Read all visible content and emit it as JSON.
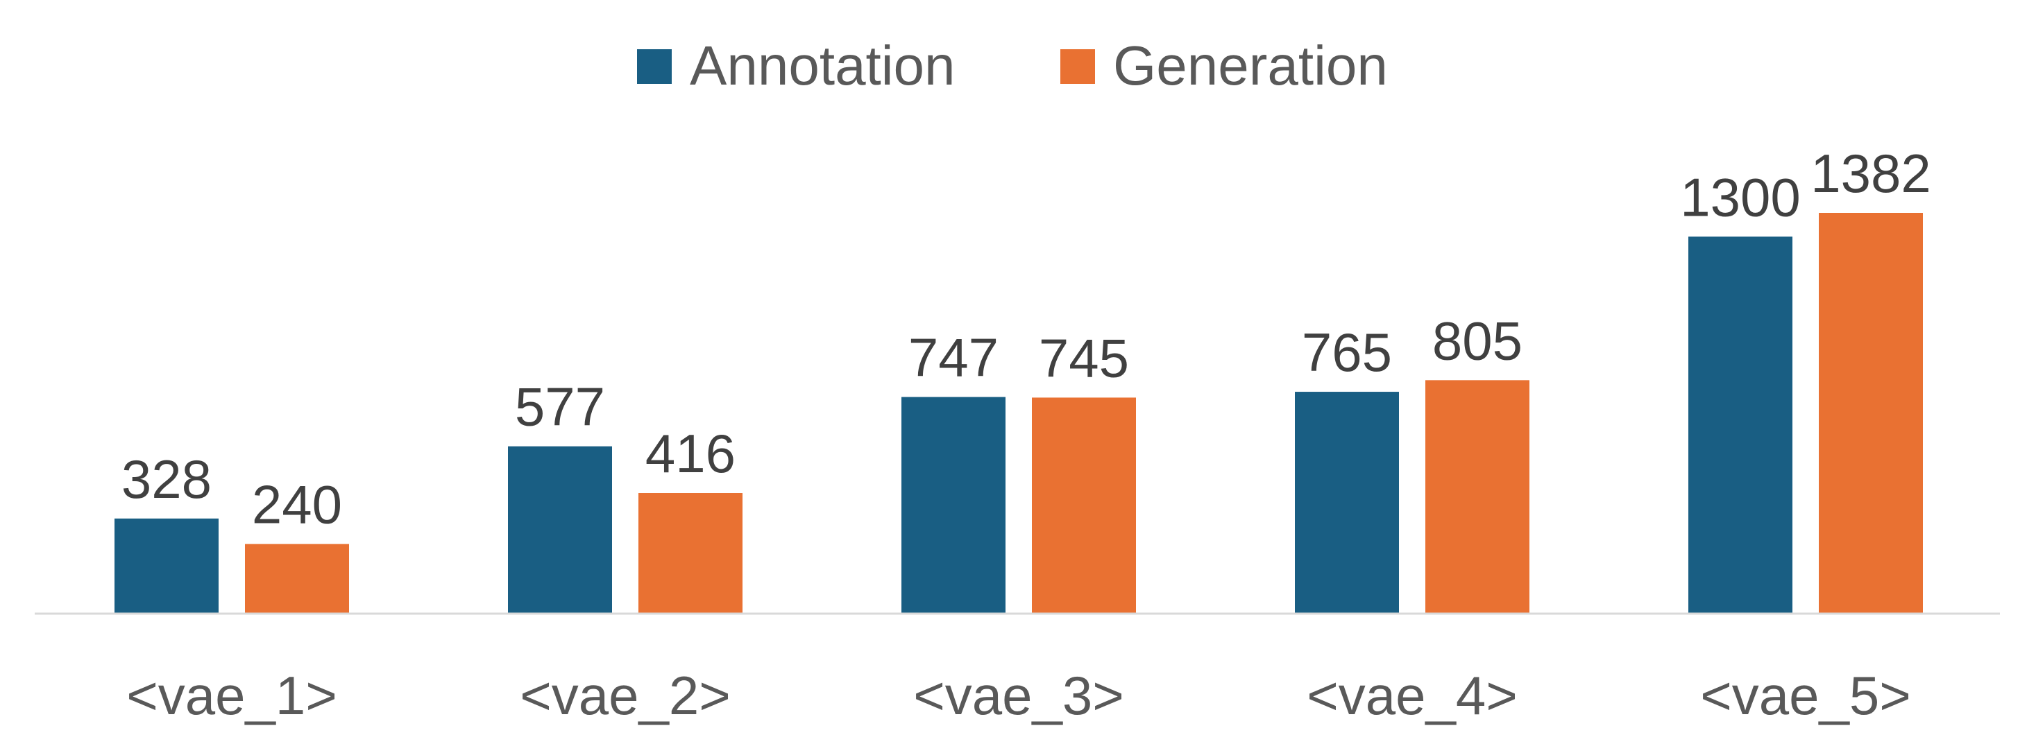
{
  "chart_data": {
    "type": "bar",
    "title": "",
    "xlabel": "",
    "ylabel": "",
    "categories": [
      "<vae_1>",
      "<vae_2>",
      "<vae_3>",
      "<vae_4>",
      "<vae_5>"
    ],
    "series": [
      {
        "name": "Annotation",
        "color": "#195E83",
        "values": [
          328,
          577,
          747,
          765,
          1300
        ]
      },
      {
        "name": "Generation",
        "color": "#E97132",
        "values": [
          240,
          416,
          745,
          805,
          1382
        ]
      }
    ],
    "ylim": [
      0,
      1382
    ],
    "grid": false,
    "legend": "top-center",
    "axis_color": "#D9D9D9"
  }
}
